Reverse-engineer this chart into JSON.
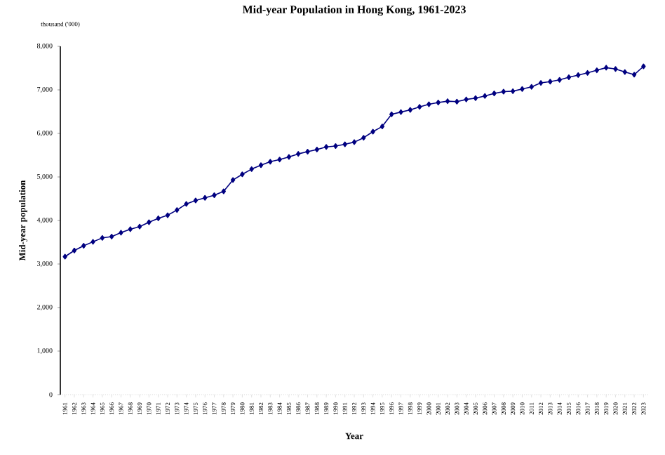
{
  "chart_data": {
    "type": "line",
    "title": "Mid-year Population in Hong Kong, 1961-2023",
    "xlabel": "Year",
    "ylabel": "Mid-year population",
    "annotations": [
      "thousand ('000)"
    ],
    "categories": [
      "1961",
      "1962",
      "1963",
      "1964",
      "1965",
      "1966",
      "1967",
      "1968",
      "1969",
      "1970",
      "1971",
      "1972",
      "1973",
      "1974",
      "1975",
      "1976",
      "1977",
      "1978",
      "1979",
      "1980",
      "1981",
      "1982",
      "1983",
      "1984",
      "1985",
      "1986",
      "1987",
      "1988",
      "1989",
      "1990",
      "1991",
      "1992",
      "1993",
      "1994",
      "1995",
      "1996",
      "1997",
      "1998",
      "1999",
      "2000",
      "2001",
      "2002",
      "2003",
      "2004",
      "2005",
      "2006",
      "2007",
      "2008",
      "2009",
      "2010",
      "2011",
      "2012",
      "2013",
      "2014",
      "2015",
      "2016",
      "2017",
      "2018",
      "2019",
      "2020",
      "2021",
      "2022",
      "2023"
    ],
    "series": [
      {
        "color": "#000080",
        "values": [
          3170,
          3310,
          3420,
          3510,
          3600,
          3630,
          3720,
          3800,
          3860,
          3960,
          4050,
          4120,
          4240,
          4380,
          4460,
          4520,
          4580,
          4670,
          4930,
          5060,
          5180,
          5270,
          5350,
          5400,
          5460,
          5530,
          5580,
          5630,
          5690,
          5710,
          5750,
          5800,
          5900,
          6040,
          6160,
          6440,
          6490,
          6540,
          6610,
          6670,
          6710,
          6740,
          6730,
          6780,
          6810,
          6860,
          6920,
          6960,
          6970,
          7020,
          7070,
          7160,
          7190,
          7230,
          7290,
          7340,
          7390,
          7450,
          7510,
          7480,
          7410,
          7350,
          7540
        ]
      }
    ],
    "ylim": [
      0,
      8000
    ],
    "yticks": [
      {
        "value": 0,
        "label": "0"
      },
      {
        "value": 1000,
        "label": "1,000"
      },
      {
        "value": 2000,
        "label": "2,000"
      },
      {
        "value": 3000,
        "label": "3,000"
      },
      {
        "value": 4000,
        "label": "4,000"
      },
      {
        "value": 5000,
        "label": "5,000"
      },
      {
        "value": 6000,
        "label": "6,000"
      },
      {
        "value": 7000,
        "label": "7,000"
      },
      {
        "value": 8000,
        "label": "8,000"
      }
    ],
    "marker": "diamond",
    "line_style": "solid",
    "grid": false
  }
}
